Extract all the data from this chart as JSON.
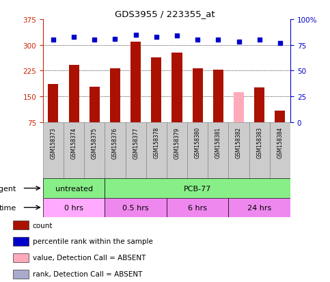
{
  "title": "GDS3955 / 223355_at",
  "samples": [
    "GSM158373",
    "GSM158374",
    "GSM158375",
    "GSM158376",
    "GSM158377",
    "GSM158378",
    "GSM158379",
    "GSM158380",
    "GSM158381",
    "GSM158382",
    "GSM158383",
    "GSM158384"
  ],
  "bar_values": [
    185,
    242,
    178,
    232,
    310,
    263,
    278,
    232,
    228,
    162,
    175,
    108
  ],
  "bar_absent": [
    false,
    false,
    false,
    false,
    false,
    false,
    false,
    false,
    false,
    true,
    false,
    false
  ],
  "rank_values": [
    80,
    83,
    80,
    81,
    85,
    83,
    84,
    80,
    80,
    78,
    80,
    77
  ],
  "rank_absent": [
    false,
    false,
    false,
    false,
    false,
    false,
    false,
    false,
    false,
    false,
    false,
    false
  ],
  "ylim_left": [
    75,
    375
  ],
  "ylim_right": [
    0,
    100
  ],
  "yticks_left": [
    75,
    150,
    225,
    300,
    375
  ],
  "yticks_right": [
    0,
    25,
    50,
    75,
    100
  ],
  "ytick_labels_left": [
    "75",
    "150",
    "225",
    "300",
    "375"
  ],
  "ytick_labels_right": [
    "0",
    "25",
    "50",
    "75",
    "100%"
  ],
  "left_axis_color": "#cc2200",
  "right_axis_color": "#0000cc",
  "bar_color_normal": "#aa1100",
  "bar_color_absent": "#ffaabb",
  "dot_color_normal": "#0000cc",
  "dot_color_absent": "#aaaacc",
  "grid_color": "#000000",
  "agent_row": [
    {
      "label": "untreated",
      "start": 0,
      "end": 3,
      "color": "#88ee88"
    },
    {
      "label": "PCB-77",
      "start": 3,
      "end": 12,
      "color": "#88ee88"
    }
  ],
  "time_row": [
    {
      "label": "0 hrs",
      "start": 0,
      "end": 3,
      "color": "#ffaaff"
    },
    {
      "label": "0.5 hrs",
      "start": 3,
      "end": 6,
      "color": "#ee88ee"
    },
    {
      "label": "6 hrs",
      "start": 6,
      "end": 9,
      "color": "#ee88ee"
    },
    {
      "label": "24 hrs",
      "start": 9,
      "end": 12,
      "color": "#ee88ee"
    }
  ],
  "agent_label": "agent",
  "time_label": "time",
  "legend_items": [
    {
      "color": "#aa1100",
      "label": "count"
    },
    {
      "color": "#0000cc",
      "label": "percentile rank within the sample"
    },
    {
      "color": "#ffaabb",
      "label": "value, Detection Call = ABSENT"
    },
    {
      "color": "#aaaacc",
      "label": "rank, Detection Call = ABSENT"
    }
  ]
}
